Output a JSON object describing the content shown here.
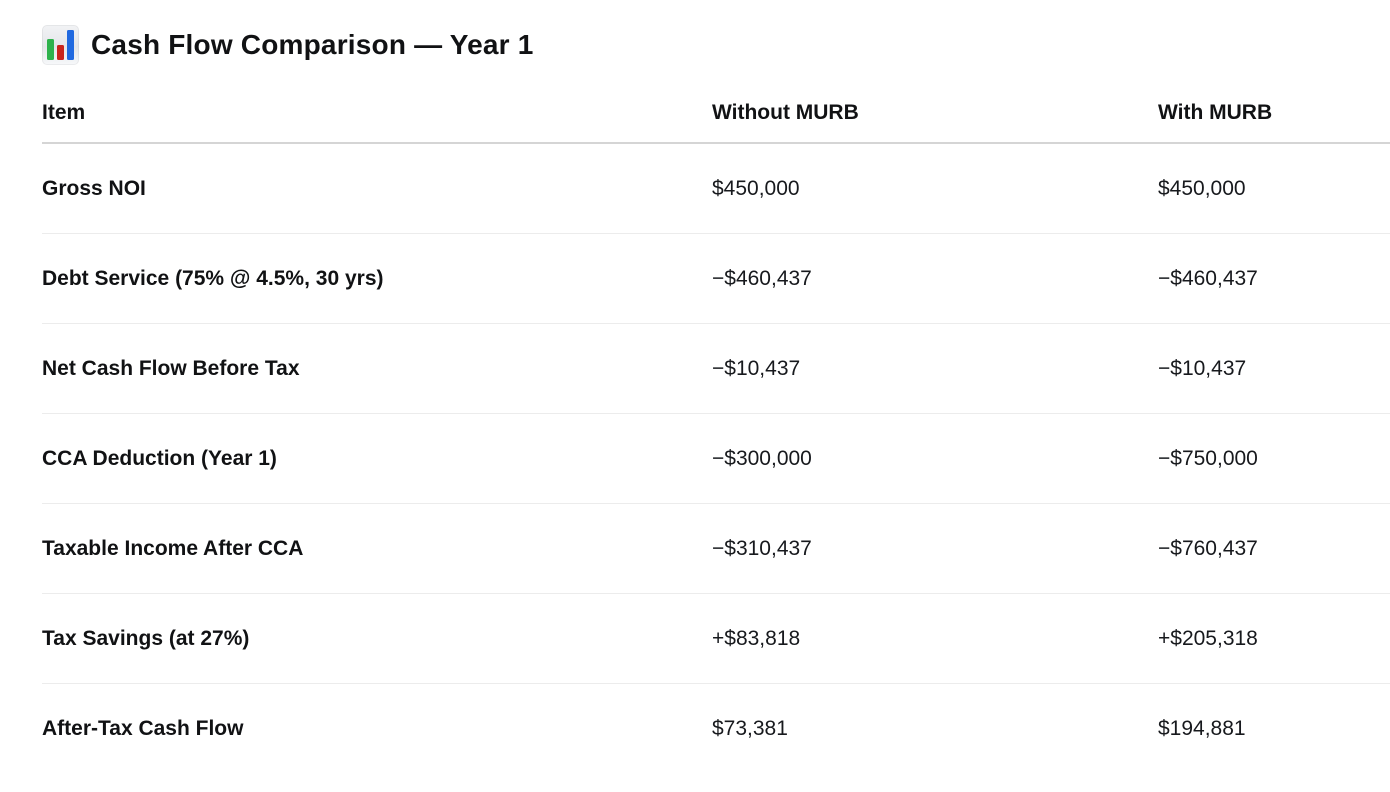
{
  "page": {
    "title": "Cash Flow Comparison — Year 1",
    "title_icon": "bar-chart-emoji"
  },
  "table": {
    "headers": {
      "item": "Item",
      "without": "Without MURB",
      "with": "With MURB"
    },
    "rows": [
      {
        "item": "Gross NOI",
        "without": "$450,000",
        "with": "$450,000"
      },
      {
        "item": "Debt Service (75% @ 4.5%, 30 yrs)",
        "without": "−$460,437",
        "with": "−$460,437"
      },
      {
        "item": "Net Cash Flow Before Tax",
        "without": "−$10,437",
        "with": "−$10,437"
      },
      {
        "item": "CCA Deduction (Year 1)",
        "without": "−$300,000",
        "with": "−$750,000"
      },
      {
        "item": "Taxable Income After CCA",
        "without": "−$310,437",
        "with": "−$760,437"
      },
      {
        "item": "Tax Savings (at 27%)",
        "without": "+$83,818",
        "with": "+$205,318"
      },
      {
        "item": "After-Tax Cash Flow",
        "without": "$73,381",
        "with": "$194,881"
      }
    ]
  },
  "colors": {
    "text": "#15171b",
    "header_divider": "#d5d5d5",
    "row_divider": "#ececec",
    "emoji_green": "#2eb24c",
    "emoji_red": "#c9251d",
    "emoji_blue": "#2069e0"
  }
}
